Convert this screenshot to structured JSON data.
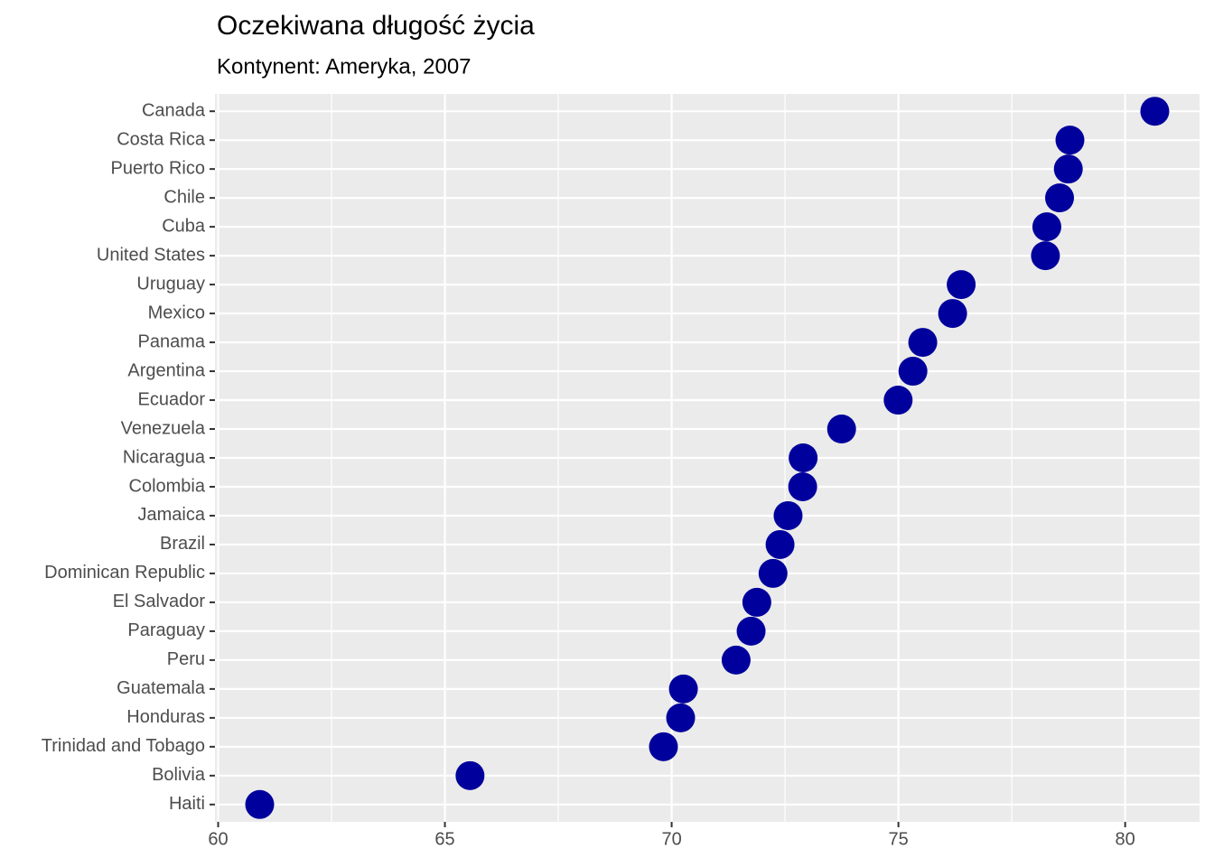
{
  "chart_data": {
    "type": "dot",
    "title": "Oczekiwana długość życia",
    "subtitle": "Kontynent: Ameryka, 2007",
    "categories": [
      "Canada",
      "Costa Rica",
      "Puerto Rico",
      "Chile",
      "Cuba",
      "United States",
      "Uruguay",
      "Mexico",
      "Panama",
      "Argentina",
      "Ecuador",
      "Venezuela",
      "Nicaragua",
      "Colombia",
      "Jamaica",
      "Brazil",
      "Dominican Republic",
      "El Salvador",
      "Paraguay",
      "Peru",
      "Guatemala",
      "Honduras",
      "Trinidad and Tobago",
      "Bolivia",
      "Haiti"
    ],
    "values": [
      80.653,
      78.782,
      78.746,
      78.553,
      78.273,
      78.242,
      76.384,
      76.195,
      75.537,
      75.32,
      74.994,
      73.747,
      72.899,
      72.889,
      72.567,
      72.39,
      72.235,
      71.878,
      71.752,
      71.421,
      70.259,
      70.198,
      69.819,
      65.554,
      60.916
    ],
    "color": "#00009c",
    "xlim": [
      59.93,
      81.64
    ],
    "xticks": [
      60,
      65,
      70,
      75,
      80
    ],
    "xminorticks": [
      62.5,
      67.5,
      72.5,
      77.5
    ],
    "grid": true
  }
}
